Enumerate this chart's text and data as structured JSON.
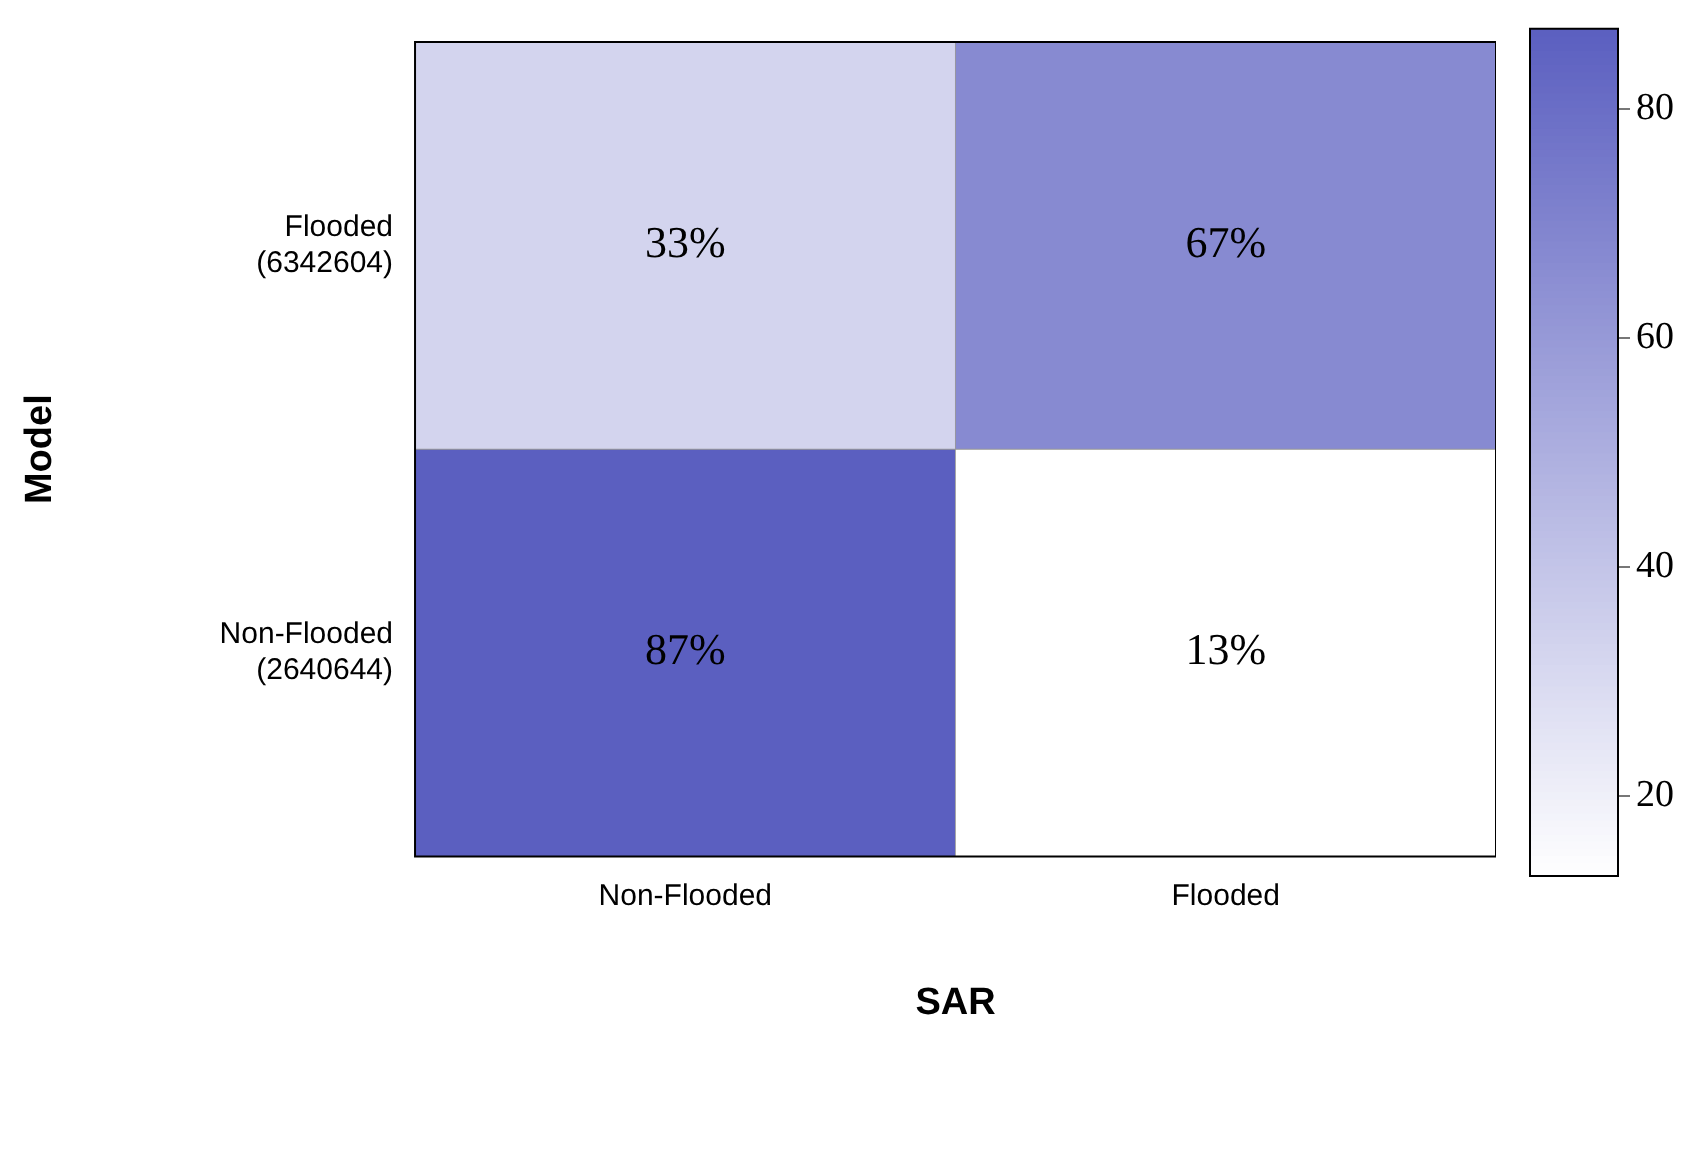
{
  "chart_data": {
    "type": "heatmap",
    "xlabel": "SAR",
    "ylabel": "Model",
    "categories": [
      "Non-Flooded",
      "Flooded"
    ],
    "y_categories": [
      "Flooded\n(6342604)",
      "Non-Flooded\n(2640644)"
    ],
    "cells": [
      [
        33,
        67
      ],
      [
        87,
        13
      ]
    ],
    "cell_labels": [
      [
        "33%",
        "67%"
      ],
      [
        "87%",
        "13%"
      ]
    ],
    "clim": [
      13,
      87
    ],
    "cticks": [
      20,
      40,
      60,
      80
    ]
  }
}
